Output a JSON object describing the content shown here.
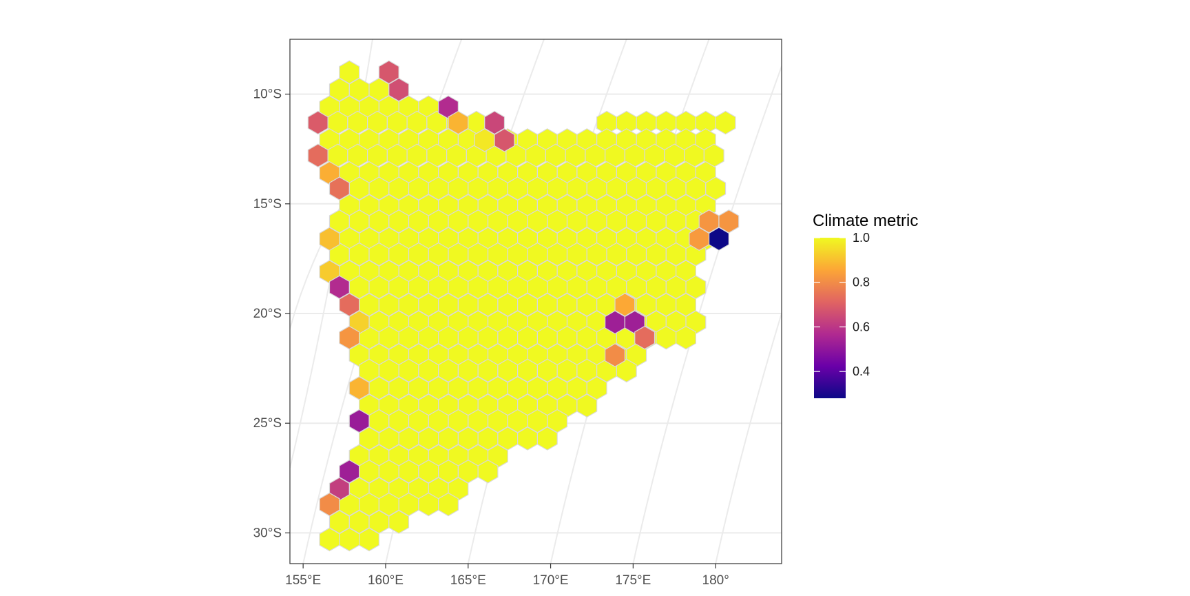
{
  "chart_data": {
    "type": "heatmap",
    "subtype": "hexbin-map",
    "title": "",
    "xlabel": "",
    "ylabel": "",
    "x_ticks": [
      "155°E",
      "160°E",
      "165°E",
      "170°E",
      "175°E",
      "180°"
    ],
    "y_ticks": [
      "10°S",
      "15°S",
      "20°S",
      "25°S",
      "30°S"
    ],
    "x_tick_values": [
      155,
      160,
      165,
      170,
      175,
      180
    ],
    "y_tick_values": [
      -10,
      -15,
      -20,
      -25,
      -30
    ],
    "xlim": [
      154.2,
      184.0
    ],
    "ylim": [
      -31.4,
      -7.5
    ],
    "grid": true,
    "projection": "curved graticule",
    "legend": {
      "title": "Climate metric",
      "position": "right",
      "labels": [
        "1.0",
        "0.8",
        "0.6",
        "0.4"
      ],
      "values": [
        1.0,
        0.8,
        0.6,
        0.4
      ],
      "range": [
        0.28,
        1.0
      ],
      "palette": [
        "#0d0887",
        "#6a00a8",
        "#b12a90",
        "#e16462",
        "#fca636",
        "#f0f921"
      ]
    },
    "hex_spacing_deg": 1.2,
    "default_value": 1.0,
    "hex_rows": [
      {
        "lat": -9.0,
        "lons": [
          [
            157.8,
            158.9
          ],
          [
            160.2,
            160.2
          ]
        ]
      },
      {
        "lat": -9.8,
        "lons": [
          [
            157.2,
            159.6
          ],
          [
            160.8,
            160.8
          ]
        ]
      },
      {
        "lat": -10.6,
        "lons": [
          [
            156.6,
            163.8
          ]
        ]
      },
      {
        "lat": -11.3,
        "lons": [
          [
            155.9,
            166.6
          ],
          [
            173.4,
            180.9
          ]
        ]
      },
      {
        "lat": -12.1,
        "lons": [
          [
            156.6,
            180.2
          ]
        ]
      },
      {
        "lat": -12.8,
        "lons": [
          [
            155.9,
            180.9
          ]
        ]
      },
      {
        "lat": -13.6,
        "lons": [
          [
            156.6,
            180.2
          ]
        ]
      },
      {
        "lat": -14.3,
        "lons": [
          [
            157.2,
            180.9
          ]
        ]
      },
      {
        "lat": -15.1,
        "lons": [
          [
            157.8,
            180.2
          ]
        ]
      },
      {
        "lat": -15.8,
        "lons": [
          [
            157.2,
            179.6
          ]
        ]
      },
      {
        "lat": -16.6,
        "lons": [
          [
            156.6,
            180.2
          ]
        ]
      },
      {
        "lat": -17.3,
        "lons": [
          [
            157.2,
            179.6
          ]
        ]
      },
      {
        "lat": -18.1,
        "lons": [
          [
            156.6,
            179.0
          ]
        ]
      },
      {
        "lat": -18.8,
        "lons": [
          [
            157.2,
            179.6
          ]
        ]
      },
      {
        "lat": -19.6,
        "lons": [
          [
            157.8,
            179.0
          ]
        ]
      },
      {
        "lat": -20.4,
        "lons": [
          [
            158.4,
            179.6
          ]
        ]
      },
      {
        "lat": -21.1,
        "lons": [
          [
            157.8,
            178.3
          ]
        ]
      },
      {
        "lat": -21.9,
        "lons": [
          [
            158.4,
            176.0
          ]
        ]
      },
      {
        "lat": -22.6,
        "lons": [
          [
            159.0,
            174.6
          ]
        ]
      },
      {
        "lat": -23.4,
        "lons": [
          [
            158.4,
            173.4
          ]
        ]
      },
      {
        "lat": -24.2,
        "lons": [
          [
            159.0,
            172.2
          ]
        ]
      },
      {
        "lat": -24.9,
        "lons": [
          [
            158.4,
            171.0
          ]
        ]
      },
      {
        "lat": -25.7,
        "lons": [
          [
            159.0,
            169.8
          ]
        ]
      },
      {
        "lat": -26.5,
        "lons": [
          [
            158.4,
            167.9
          ]
        ]
      },
      {
        "lat": -27.2,
        "lons": [
          [
            157.8,
            166.6
          ]
        ]
      },
      {
        "lat": -28.0,
        "lons": [
          [
            157.2,
            165.4
          ]
        ]
      },
      {
        "lat": -28.7,
        "lons": [
          [
            157.8,
            164.1
          ]
        ]
      },
      {
        "lat": -29.5,
        "lons": [
          [
            157.2,
            161.4
          ]
        ]
      },
      {
        "lat": -30.3,
        "lons": [
          [
            156.6,
            159.6
          ]
        ]
      }
    ],
    "special_hexes": [
      {
        "lon": 160.2,
        "lat": -9.0,
        "value": 0.68
      },
      {
        "lon": 160.8,
        "lat": -9.8,
        "value": 0.66
      },
      {
        "lon": 163.8,
        "lat": -10.6,
        "value": 0.57
      },
      {
        "lon": 155.9,
        "lat": -11.3,
        "value": 0.69
      },
      {
        "lon": 164.4,
        "lat": -11.3,
        "value": 0.88
      },
      {
        "lon": 166.6,
        "lat": -11.3,
        "value": 0.64
      },
      {
        "lon": 166.0,
        "lat": -12.1,
        "value": 0.97
      },
      {
        "lon": 167.2,
        "lat": -12.1,
        "value": 0.68
      },
      {
        "lon": 155.9,
        "lat": -12.8,
        "value": 0.73
      },
      {
        "lon": 156.6,
        "lat": -13.6,
        "value": 0.87
      },
      {
        "lon": 157.2,
        "lat": -14.3,
        "value": 0.74
      },
      {
        "lon": 179.6,
        "lat": -15.8,
        "value": 0.82
      },
      {
        "lon": 180.8,
        "lat": -15.8,
        "value": 0.82
      },
      {
        "lon": 156.6,
        "lat": -16.6,
        "value": 0.9
      },
      {
        "lon": 179.0,
        "lat": -16.6,
        "value": 0.83
      },
      {
        "lon": 180.2,
        "lat": -16.6,
        "value": 0.28
      },
      {
        "lon": 156.6,
        "lat": -18.1,
        "value": 0.92
      },
      {
        "lon": 157.2,
        "lat": -18.8,
        "value": 0.57
      },
      {
        "lon": 157.8,
        "lat": -19.6,
        "value": 0.73
      },
      {
        "lon": 174.5,
        "lat": -19.6,
        "value": 0.86
      },
      {
        "lon": 158.4,
        "lat": -20.4,
        "value": 0.93
      },
      {
        "lon": 173.9,
        "lat": -20.4,
        "value": 0.53
      },
      {
        "lon": 175.1,
        "lat": -20.4,
        "value": 0.53
      },
      {
        "lon": 157.8,
        "lat": -21.1,
        "value": 0.82
      },
      {
        "lon": 175.7,
        "lat": -21.1,
        "value": 0.73
      },
      {
        "lon": 173.9,
        "lat": -21.9,
        "value": 0.8
      },
      {
        "lon": 158.4,
        "lat": -23.4,
        "value": 0.88
      },
      {
        "lon": 158.4,
        "lat": -24.9,
        "value": 0.52
      },
      {
        "lon": 157.8,
        "lat": -27.2,
        "value": 0.53
      },
      {
        "lon": 157.2,
        "lat": -28.0,
        "value": 0.62
      },
      {
        "lon": 156.6,
        "lat": -28.7,
        "value": 0.8
      }
    ]
  }
}
